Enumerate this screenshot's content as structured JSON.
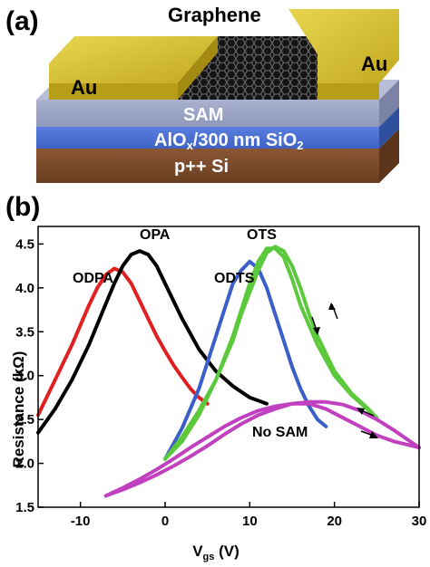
{
  "panel_a": {
    "label": "(a)",
    "layers": {
      "graphene": "Graphene",
      "gold_left": "Au",
      "gold_right": "Au",
      "sam": "SAM",
      "oxide": "AlOx/300 nm SiO2",
      "oxide_main": "AlO",
      "oxide_sub_x": "x",
      "oxide_mid": "/300 nm SiO",
      "oxide_sub_2": "2",
      "substrate": "p++ Si"
    },
    "colors": {
      "gold": "#c9b220",
      "sam": "#9aa3c4",
      "oxide": "#4a6fd0",
      "substrate": "#7a4a2c",
      "graphene": "#1a1a1a"
    }
  },
  "panel_b": {
    "label": "(b)",
    "chart_data": {
      "type": "line",
      "xlabel": "V",
      "xlabel_sub": "gs",
      "xlabel_unit": " (V)",
      "ylabel": "Resistance (kΩ)",
      "xlim": [
        -15,
        30
      ],
      "ylim": [
        1.5,
        4.7
      ],
      "xticks": [
        -10,
        0,
        10,
        20,
        30
      ],
      "yticks": [
        1.5,
        2.0,
        2.5,
        3.0,
        3.5,
        4.0,
        4.5
      ],
      "xtick_labels": [
        "-10",
        "0",
        "10",
        "20",
        "30"
      ],
      "ytick_labels": [
        "1.5",
        "2.0",
        "2.5",
        "3.0",
        "3.5",
        "4.0",
        "4.5"
      ],
      "series": [
        {
          "name": "ODPA",
          "color": "#e02020",
          "x": [
            -15,
            -13,
            -11,
            -9,
            -8,
            -7,
            -6,
            -5,
            -4,
            -3,
            -2,
            -1,
            0,
            1,
            2,
            3,
            4,
            5
          ],
          "y": [
            2.55,
            2.95,
            3.35,
            3.8,
            4.0,
            4.15,
            4.22,
            4.18,
            4.05,
            3.85,
            3.65,
            3.45,
            3.28,
            3.12,
            2.98,
            2.85,
            2.75,
            2.68
          ]
        },
        {
          "name": "OPA",
          "color": "#000000",
          "x": [
            -15,
            -13,
            -11,
            -9,
            -7,
            -6,
            -5,
            -4,
            -3,
            -2,
            -1,
            0,
            2,
            4,
            6,
            8,
            10,
            12
          ],
          "y": [
            2.35,
            2.62,
            2.95,
            3.35,
            3.82,
            4.05,
            4.25,
            4.38,
            4.42,
            4.38,
            4.25,
            4.05,
            3.65,
            3.3,
            3.05,
            2.88,
            2.75,
            2.68
          ]
        },
        {
          "name": "ODTS",
          "color": "#3a5fc8",
          "x": [
            0,
            2,
            4,
            6,
            7,
            8,
            9,
            10,
            11,
            12,
            13,
            14,
            15,
            16,
            17,
            18,
            19
          ],
          "y": [
            2.05,
            2.4,
            2.85,
            3.45,
            3.75,
            4.05,
            4.2,
            4.3,
            4.22,
            4.0,
            3.7,
            3.4,
            3.1,
            2.85,
            2.65,
            2.5,
            2.42
          ]
        },
        {
          "name": "OTS",
          "color": "#5cc83c",
          "x": [
            0,
            2,
            4,
            6,
            8,
            9,
            10,
            11,
            12,
            13,
            14,
            15,
            16,
            17,
            18,
            20,
            22,
            24,
            25
          ],
          "y": [
            2.05,
            2.3,
            2.6,
            2.95,
            3.4,
            3.7,
            3.95,
            4.2,
            4.4,
            4.47,
            4.42,
            4.25,
            4.0,
            3.7,
            3.45,
            3.05,
            2.8,
            2.62,
            2.52
          ]
        },
        {
          "name": "OTS (return sweep)",
          "color": "#5cc83c",
          "x": [
            25,
            22,
            20,
            18,
            16,
            15,
            14,
            13,
            12,
            11,
            10,
            9,
            8,
            6,
            4,
            2,
            0
          ],
          "y": [
            2.52,
            2.78,
            3.0,
            3.35,
            3.8,
            4.1,
            4.35,
            4.45,
            4.45,
            4.3,
            4.05,
            3.75,
            3.45,
            2.95,
            2.55,
            2.25,
            2.05
          ]
        },
        {
          "name": "No SAM",
          "color": "#c040c0",
          "x": [
            -7,
            -5,
            -3,
            -1,
            1,
            3,
            5,
            7,
            9,
            11,
            13,
            15,
            17,
            19,
            21,
            23,
            25,
            27,
            30
          ],
          "y": [
            1.63,
            1.72,
            1.82,
            1.93,
            2.05,
            2.18,
            2.3,
            2.42,
            2.52,
            2.6,
            2.65,
            2.68,
            2.68,
            2.62,
            2.52,
            2.42,
            2.32,
            2.25,
            2.18
          ]
        },
        {
          "name": "No SAM (return sweep)",
          "color": "#c040c0",
          "x": [
            30,
            27,
            25,
            23,
            21,
            19,
            17,
            15,
            13,
            11,
            9,
            7,
            5,
            3,
            1,
            -1,
            -3,
            -5,
            -7
          ],
          "y": [
            2.18,
            2.38,
            2.5,
            2.6,
            2.67,
            2.7,
            2.7,
            2.68,
            2.62,
            2.55,
            2.45,
            2.33,
            2.2,
            2.08,
            1.97,
            1.87,
            1.78,
            1.7,
            1.63
          ]
        }
      ],
      "labels": {
        "odpa": "ODPA",
        "opa": "OPA",
        "odts": "ODTS",
        "ots": "OTS",
        "no_sam": "No SAM"
      }
    }
  }
}
